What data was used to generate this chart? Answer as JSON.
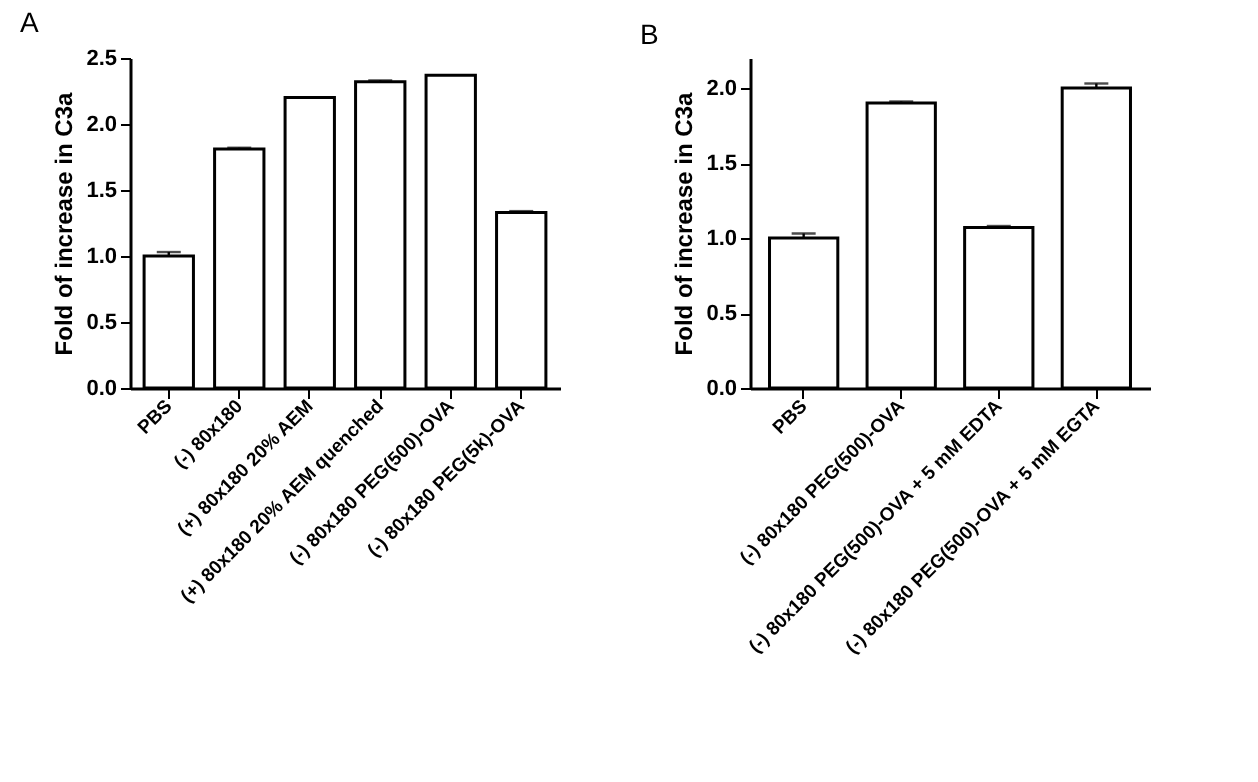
{
  "chart_data": [
    {
      "type": "bar",
      "title": "A",
      "ylabel": "Fold of increase in C3a",
      "categories": [
        "PBS",
        "(-) 80x180",
        "(+) 80x180 20% AEM",
        "(+) 80x180 20% AEM quenched",
        "(-) 80x180 PEG(500)-OVA",
        "(-) 80x180 PEG(5k)-OVA"
      ],
      "values": [
        1.0,
        1.81,
        2.2,
        2.32,
        2.37,
        1.33
      ],
      "errors": [
        0.03,
        0.01,
        null,
        0.01,
        null,
        0.01
      ],
      "color": "#ffffff",
      "ylim": [
        0,
        2.5
      ],
      "yticks": [
        {
          "value": 0,
          "label": "0.0"
        },
        {
          "value": 0.5,
          "label": "0.5"
        },
        {
          "value": 1,
          "label": "1.0"
        },
        {
          "value": 1.5,
          "label": "1.5"
        },
        {
          "value": 2,
          "label": "2.0"
        },
        {
          "value": 2.5,
          "label": "2.5"
        }
      ]
    },
    {
      "type": "bar",
      "title": "B",
      "ylabel": "Fold of increase in C3a",
      "categories": [
        "PBS",
        "(-) 80x180 PEG(500)-OVA",
        "(-) 80x180 PEG(500)-OVA + 5 mM EDTA",
        "(-) 80x180 PEG(500)-OVA + 5 mM EGTA"
      ],
      "values": [
        1.0,
        1.9,
        1.07,
        2.0
      ],
      "errors": [
        0.03,
        0.01,
        0.01,
        0.03
      ],
      "color": "#ffffff",
      "ylim": [
        0,
        2.2
      ],
      "yticks": [
        {
          "value": 0,
          "label": "0.0"
        },
        {
          "value": 0.5,
          "label": "0.5"
        },
        {
          "value": 1,
          "label": "1.0"
        },
        {
          "value": 1.5,
          "label": "1.5"
        },
        {
          "value": 2,
          "label": "2.0"
        }
      ]
    }
  ]
}
